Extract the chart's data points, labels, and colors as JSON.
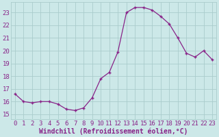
{
  "x": [
    0,
    1,
    2,
    3,
    4,
    5,
    6,
    7,
    8,
    9,
    10,
    11,
    12,
    13,
    14,
    15,
    16,
    17,
    18,
    19,
    20,
    21,
    22,
    23
  ],
  "y": [
    16.6,
    16.0,
    15.9,
    16.0,
    16.0,
    15.8,
    15.4,
    15.3,
    15.5,
    16.3,
    17.8,
    18.3,
    19.9,
    23.0,
    23.4,
    23.4,
    23.2,
    22.7,
    22.1,
    21.0,
    19.8,
    19.5,
    20.0,
    19.3
  ],
  "line_color": "#882288",
  "marker": "+",
  "bg_color": "#cce8e8",
  "grid_color": "#aacccc",
  "xlabel": "Windchill (Refroidissement éolien,°C)",
  "yticks": [
    15,
    16,
    17,
    18,
    19,
    20,
    21,
    22,
    23
  ],
  "xlim": [
    -0.5,
    23.5
  ],
  "ylim": [
    14.6,
    23.8
  ],
  "xticks": [
    0,
    1,
    2,
    3,
    4,
    5,
    6,
    7,
    8,
    9,
    10,
    11,
    12,
    13,
    14,
    15,
    16,
    17,
    18,
    19,
    20,
    21,
    22,
    23
  ],
  "tick_color": "#882288",
  "label_color": "#882288",
  "font_size_label": 7,
  "font_size_tick": 6.5
}
